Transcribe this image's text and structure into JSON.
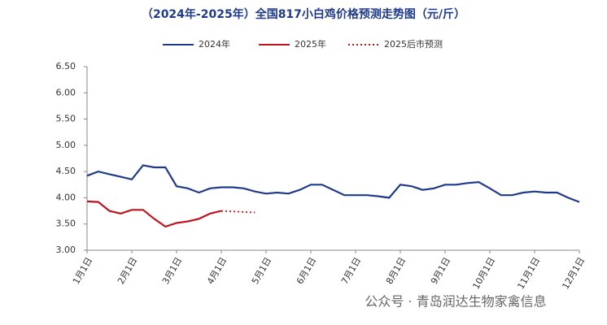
{
  "chart_data": {
    "type": "line",
    "title": "（2024年-2025年）全国817小白鸡价格预测走势图（元/斤）",
    "watermark": "公众号 · 青岛润达生物家禽信息",
    "categories": [
      "1月1日",
      null,
      null,
      null,
      "2月1日",
      null,
      null,
      null,
      "3月1日",
      null,
      null,
      null,
      "4月1日",
      null,
      null,
      null,
      "5月1日",
      null,
      null,
      null,
      "6月1日",
      null,
      null,
      null,
      "7月1日",
      null,
      null,
      null,
      "8月1日",
      null,
      null,
      null,
      "9月1日",
      null,
      null,
      null,
      "10月1日",
      null,
      null,
      null,
      "11月1日",
      null,
      null,
      null,
      "12月1日"
    ],
    "series": [
      {
        "name": "2024年",
        "color": "#1f3a8a",
        "dash": false,
        "values": [
          4.42,
          4.5,
          4.45,
          4.4,
          4.35,
          4.62,
          4.58,
          4.58,
          4.22,
          4.18,
          4.1,
          4.18,
          4.2,
          4.2,
          4.18,
          4.12,
          4.08,
          4.1,
          4.08,
          4.15,
          4.25,
          4.25,
          4.15,
          4.05,
          4.05,
          4.05,
          4.03,
          4.0,
          4.25,
          4.22,
          4.15,
          4.18,
          4.25,
          4.25,
          4.28,
          4.3,
          4.18,
          4.05,
          4.05,
          4.1,
          4.12,
          4.1,
          4.1,
          4.0,
          3.92
        ]
      },
      {
        "name": "2025年",
        "color": "#c0141c",
        "dash": false,
        "values": [
          3.93,
          3.92,
          3.75,
          3.7,
          3.77,
          3.77,
          3.6,
          3.45,
          3.52,
          3.55,
          3.6,
          3.7,
          3.75,
          null,
          null,
          null,
          null,
          null,
          null,
          null,
          null,
          null,
          null,
          null,
          null,
          null,
          null,
          null,
          null,
          null,
          null,
          null,
          null,
          null,
          null,
          null,
          null,
          null,
          null,
          null,
          null,
          null,
          null,
          null,
          null
        ]
      },
      {
        "name": "2025后市预测",
        "color": "#c0141c",
        "dash": true,
        "values": [
          null,
          null,
          null,
          null,
          null,
          null,
          null,
          null,
          null,
          null,
          null,
          null,
          3.75,
          3.74,
          3.73,
          3.72,
          null,
          null,
          null,
          null,
          null,
          null,
          null,
          null,
          null,
          null,
          null,
          null,
          null,
          null,
          null,
          null,
          null,
          null,
          null,
          null,
          null,
          null,
          null,
          null,
          null,
          null,
          null,
          null,
          null
        ]
      }
    ],
    "ylim": [
      3,
      6.5
    ],
    "yticks": [
      {
        "value": 3,
        "label": "3.00"
      },
      {
        "value": 3.5,
        "label": "3.50"
      },
      {
        "value": 4,
        "label": "4.00"
      },
      {
        "value": 4.5,
        "label": "4.50"
      },
      {
        "value": 5,
        "label": "5.00"
      },
      {
        "value": 5.5,
        "label": "5.50"
      },
      {
        "value": 6,
        "label": "6.00"
      },
      {
        "value": 6.5,
        "label": "6.50"
      }
    ]
  }
}
